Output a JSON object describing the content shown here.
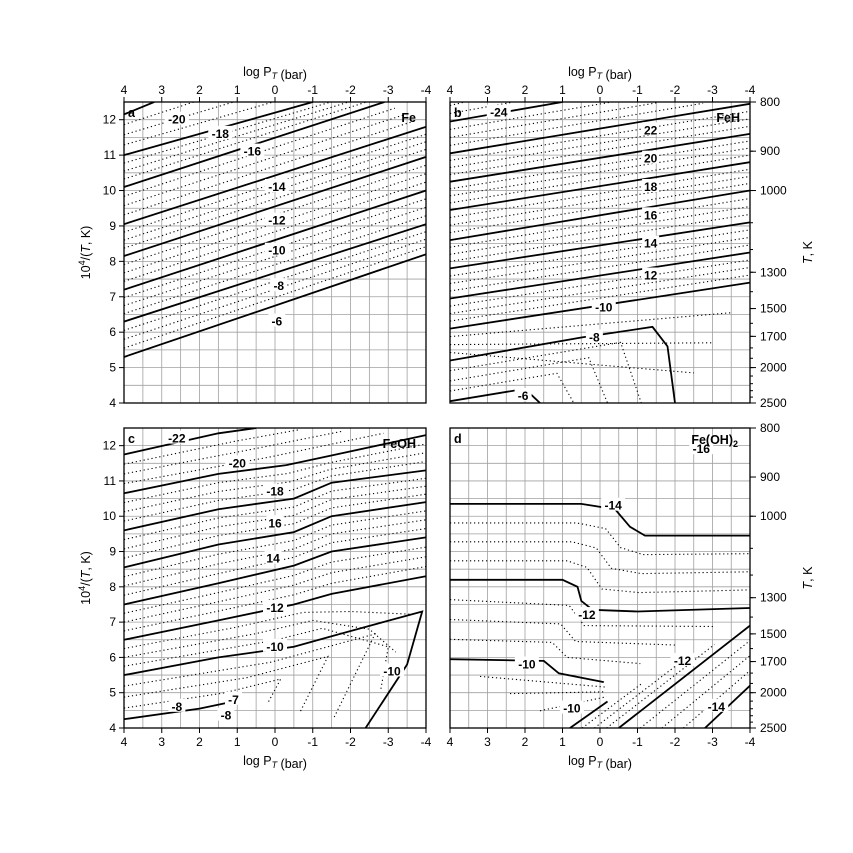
{
  "chart_data": {
    "type": "contour",
    "x_axis": {
      "label": "log P_T (bar)",
      "range": [
        4,
        -4
      ],
      "ticks": [
        "4",
        "3",
        "2",
        "1",
        "0",
        "-1",
        "-2",
        "-3",
        "-4"
      ]
    },
    "y_axis_left": {
      "label": "10^4/(T, K)",
      "range": [
        4,
        12.5
      ],
      "ticks": [
        "4",
        "5",
        "6",
        "7",
        "8",
        "9",
        "10",
        "11",
        "12"
      ]
    },
    "y_axis_right": {
      "label": "T, K",
      "ticks": [
        "800",
        "900",
        "1000",
        "1300",
        "1500",
        "1700",
        "2000",
        "2500"
      ],
      "tick_values_inverse": [
        12.5,
        11.111,
        10,
        7.692,
        6.667,
        5.882,
        5,
        4
      ]
    },
    "grid": true,
    "panels": [
      {
        "letter": "a",
        "species": "Fe",
        "contour_labels": [
          {
            "text": "-20",
            "x": 2.6,
            "y": 12.0
          },
          {
            "text": "-18",
            "x": 1.45,
            "y": 11.6
          },
          {
            "text": "-16",
            "x": 0.6,
            "y": 11.1
          },
          {
            "text": "-14",
            "x": -0.05,
            "y": 10.1
          },
          {
            "text": "-12",
            "x": -0.05,
            "y": 9.15
          },
          {
            "text": "-10",
            "x": -0.05,
            "y": 8.3
          },
          {
            "text": "-8",
            "x": -0.1,
            "y": 7.3
          },
          {
            "text": "-6",
            "x": -0.05,
            "y": 6.3
          }
        ],
        "contours": [
          {
            "level": "-20",
            "points": [
              [
                4,
                12.15
              ],
              [
                3.2,
                12.5
              ]
            ]
          },
          {
            "level": "-18",
            "points": [
              [
                4,
                11.0
              ],
              [
                -1.0,
                12.5
              ]
            ]
          },
          {
            "level": "-16",
            "points": [
              [
                4,
                10.1
              ],
              [
                -2.9,
                12.5
              ]
            ]
          },
          {
            "level": "-14",
            "points": [
              [
                4,
                9.05
              ],
              [
                -4,
                11.8
              ]
            ]
          },
          {
            "level": "-12",
            "points": [
              [
                4,
                8.15
              ],
              [
                -4,
                10.95
              ]
            ]
          },
          {
            "level": "-10",
            "points": [
              [
                4,
                7.2
              ],
              [
                -4,
                10.0
              ]
            ]
          },
          {
            "level": "-8",
            "points": [
              [
                4,
                6.3
              ],
              [
                -4,
                9.05
              ]
            ]
          },
          {
            "level": "-6",
            "points": [
              [
                4,
                5.3
              ],
              [
                -4,
                8.2
              ]
            ]
          }
        ]
      },
      {
        "letter": "b",
        "species": "FeH",
        "contour_labels": [
          {
            "text": "-24",
            "x": 2.7,
            "y": 12.2
          },
          {
            "text": "22",
            "x": -1.35,
            "y": 11.7
          },
          {
            "text": "20",
            "x": -1.35,
            "y": 10.9
          },
          {
            "text": "18",
            "x": -1.35,
            "y": 10.1
          },
          {
            "text": "16",
            "x": -1.35,
            "y": 9.3
          },
          {
            "text": "14",
            "x": -1.35,
            "y": 8.5
          },
          {
            "text": "12",
            "x": -1.35,
            "y": 7.6
          },
          {
            "text": "-10",
            "x": -0.1,
            "y": 6.7
          },
          {
            "text": "-8",
            "x": 0.15,
            "y": 5.85
          },
          {
            "text": "-6",
            "x": 2.05,
            "y": 4.2
          }
        ],
        "contours": [
          {
            "level": "-24",
            "points": [
              [
                4,
                11.95
              ],
              [
                1.0,
                12.5
              ]
            ]
          },
          {
            "level": "-22",
            "points": [
              [
                4,
                11.05
              ],
              [
                -4,
                12.45
              ]
            ]
          },
          {
            "level": "-20",
            "points": [
              [
                4,
                10.25
              ],
              [
                -4,
                11.6
              ]
            ]
          },
          {
            "level": "-18",
            "points": [
              [
                4,
                9.45
              ],
              [
                -4,
                10.8
              ]
            ]
          },
          {
            "level": "-16",
            "points": [
              [
                4,
                8.6
              ],
              [
                -4,
                10.0
              ]
            ]
          },
          {
            "level": "-14",
            "points": [
              [
                4,
                7.8
              ],
              [
                -4,
                9.1
              ]
            ]
          },
          {
            "level": "-12",
            "points": [
              [
                4,
                6.95
              ],
              [
                -4,
                8.25
              ]
            ]
          },
          {
            "level": "-10",
            "points": [
              [
                4,
                6.1
              ],
              [
                -4,
                7.4
              ]
            ]
          },
          {
            "level": "-8",
            "points": [
              [
                4,
                5.2
              ],
              [
                0.5,
                5.85
              ],
              [
                -1.4,
                6.15
              ],
              [
                -1.8,
                5.6
              ],
              [
                -2.0,
                4.0
              ]
            ]
          },
          {
            "level": "-6",
            "points": [
              [
                4,
                4.05
              ],
              [
                2.0,
                4.4
              ],
              [
                1.6,
                4.0
              ]
            ]
          }
        ]
      },
      {
        "letter": "c",
        "species": "FeOH",
        "contour_labels": [
          {
            "text": "-22",
            "x": 2.6,
            "y": 12.2
          },
          {
            "text": "-20",
            "x": 1.0,
            "y": 11.5
          },
          {
            "text": "-18",
            "x": 0.0,
            "y": 10.7
          },
          {
            "text": "16",
            "x": 0.0,
            "y": 9.8
          },
          {
            "text": "14",
            "x": 0.05,
            "y": 8.8
          },
          {
            "text": "-12",
            "x": 0.0,
            "y": 7.4
          },
          {
            "text": "-10",
            "x": 0.0,
            "y": 6.3
          },
          {
            "text": "-10",
            "x": -3.1,
            "y": 5.6
          },
          {
            "text": "-8",
            "x": 2.6,
            "y": 4.6
          },
          {
            "text": "-7",
            "x": 1.1,
            "y": 4.8
          },
          {
            "text": "-8",
            "x": 1.3,
            "y": 4.35
          }
        ],
        "contours": [
          {
            "level": "-22",
            "points": [
              [
                4,
                11.75
              ],
              [
                1.5,
                12.35
              ],
              [
                0.5,
                12.5
              ]
            ]
          },
          {
            "level": "-20",
            "points": [
              [
                4,
                10.65
              ],
              [
                1.5,
                11.2
              ],
              [
                -0.3,
                11.45
              ],
              [
                -1.4,
                11.7
              ],
              [
                -4,
                12.3
              ]
            ]
          },
          {
            "level": "-18",
            "points": [
              [
                4,
                9.6
              ],
              [
                1.5,
                10.2
              ],
              [
                -0.5,
                10.5
              ],
              [
                -1.5,
                10.95
              ],
              [
                -4,
                11.3
              ]
            ]
          },
          {
            "level": "-16",
            "points": [
              [
                4,
                8.55
              ],
              [
                1.5,
                9.2
              ],
              [
                -0.5,
                9.55
              ],
              [
                -1.5,
                10.0
              ],
              [
                -4,
                10.4
              ]
            ]
          },
          {
            "level": "-14",
            "points": [
              [
                4,
                7.5
              ],
              [
                1.5,
                8.1
              ],
              [
                -0.5,
                8.6
              ],
              [
                -1.5,
                9.0
              ],
              [
                -4,
                9.4
              ]
            ]
          },
          {
            "level": "-12",
            "points": [
              [
                4,
                6.5
              ],
              [
                1.5,
                7.05
              ],
              [
                -0.5,
                7.5
              ],
              [
                -1.5,
                7.8
              ],
              [
                -4,
                8.3
              ]
            ]
          },
          {
            "level": "-10",
            "points": [
              [
                4,
                5.5
              ],
              [
                1.5,
                6.0
              ],
              [
                -0.5,
                6.3
              ],
              [
                -1.5,
                6.6
              ],
              [
                -3.9,
                7.3
              ],
              [
                -3.5,
                5.8
              ],
              [
                -2.4,
                4.0
              ]
            ]
          },
          {
            "level": "-8",
            "points": [
              [
                4,
                4.25
              ],
              [
                2.0,
                4.55
              ],
              [
                1.1,
                4.75
              ],
              [
                1.05,
                4.95
              ]
            ]
          }
        ]
      },
      {
        "letter": "d",
        "species": "Fe(OH)2",
        "contour_labels": [
          {
            "text": "-16",
            "x": -2.7,
            "y": 11.9
          },
          {
            "text": "-14",
            "x": -0.35,
            "y": 10.3
          },
          {
            "text": "-12",
            "x": 0.35,
            "y": 7.2
          },
          {
            "text": "-12",
            "x": -2.2,
            "y": 5.9
          },
          {
            "text": "-10",
            "x": 1.95,
            "y": 5.8
          },
          {
            "text": "-10",
            "x": 0.75,
            "y": 4.55
          },
          {
            "text": "-14",
            "x": -3.1,
            "y": 4.6
          }
        ],
        "contours": [
          {
            "level": "-14",
            "points": [
              [
                4,
                10.35
              ],
              [
                0.5,
                10.35
              ],
              [
                -0.4,
                10.2
              ],
              [
                -0.8,
                9.7
              ],
              [
                -1.2,
                9.45
              ],
              [
                -4,
                9.45
              ]
            ]
          },
          {
            "level": "-12",
            "points": [
              [
                4,
                8.2
              ],
              [
                1.0,
                8.2
              ],
              [
                0.6,
                8.0
              ],
              [
                0.5,
                7.6
              ],
              [
                0.2,
                7.35
              ],
              [
                -1.0,
                7.3
              ],
              [
                -4,
                7.4
              ]
            ]
          },
          {
            "level": "-10",
            "points": [
              [
                4,
                5.95
              ],
              [
                1.5,
                5.9
              ],
              [
                1.1,
                5.55
              ],
              [
                -0.1,
                5.3
              ]
            ]
          },
          {
            "level": "-10b",
            "points": [
              [
                0.8,
                4.0
              ],
              [
                -0.2,
                4.75
              ]
            ]
          },
          {
            "level": "-12b",
            "points": [
              [
                -0.5,
                4.0
              ],
              [
                -4,
                6.9
              ]
            ]
          },
          {
            "level": "-14b",
            "points": [
              [
                -2.8,
                4.0
              ],
              [
                -4,
                5.2
              ]
            ]
          }
        ]
      }
    ]
  }
}
